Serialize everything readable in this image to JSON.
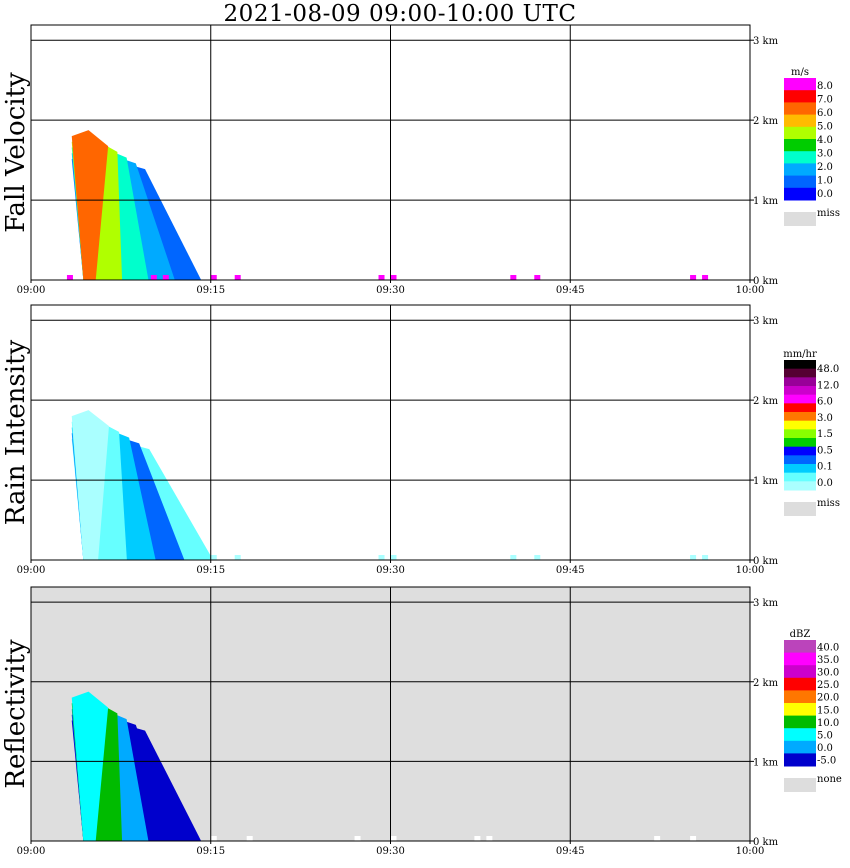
{
  "title": "2021-08-09   09:00-10:00 UTC",
  "colors": {
    "frame": "#000000",
    "missing": "#dddddd",
    "background": "#ffffff",
    "reflectivity_background": "#dedede"
  },
  "chart_data": [
    {
      "type": "heatmap",
      "name": "fall-velocity",
      "ylabel": "Fall Velocity",
      "x_ticks": [
        "09:00",
        "09:15",
        "09:30",
        "09:45",
        "10:00"
      ],
      "xlim": [
        "09:00",
        "10:00"
      ],
      "y_ticks": [
        "0 km",
        "1 km",
        "2 km",
        "3 km"
      ],
      "ylim": [
        0,
        3.0
      ],
      "grid": true,
      "background": "#ffffff",
      "legend": {
        "placement": "right",
        "unit": "m/s",
        "labels": [
          "8.0",
          "7.0",
          "6.0",
          "5.0",
          "4.0",
          "3.0",
          "2.0",
          "1.0",
          "0.0"
        ],
        "colors": [
          "#ff00ff",
          "#ff0000",
          "#ff6600",
          "#ffbb00",
          "#b0ff00",
          "#00cc00",
          "#00ffcc",
          "#00aaff",
          "#0066ff",
          "#0000ff"
        ],
        "missing_label": "miss"
      },
      "precipitation": {
        "start_time": "09:02",
        "end_time": "09:13",
        "max_height_km": 1.8,
        "surface_echo_times": [
          "09:03",
          "09:10",
          "09:11",
          "09:15",
          "09:17",
          "09:29",
          "09:30",
          "09:40",
          "09:42",
          "09:55",
          "09:56"
        ]
      }
    },
    {
      "type": "heatmap",
      "name": "rain-intensity",
      "ylabel": "Rain Intensity",
      "x_ticks": [
        "09:00",
        "09:15",
        "09:30",
        "09:45",
        "10:00"
      ],
      "xlim": [
        "09:00",
        "10:00"
      ],
      "y_ticks": [
        "0 km",
        "1 km",
        "2 km",
        "3 km"
      ],
      "ylim": [
        0,
        3.0
      ],
      "grid": true,
      "background": "#ffffff",
      "legend": {
        "placement": "right",
        "unit": "mm/hr",
        "labels": [
          "48.0",
          "12.0",
          "6.0",
          "3.0",
          "1.5",
          "0.5",
          "0.1",
          "0.0"
        ],
        "colors": [
          "#000000",
          "#550033",
          "#990099",
          "#cc00cc",
          "#ff00ff",
          "#ff0000",
          "#ff7700",
          "#ffff00",
          "#88ff00",
          "#00cc00",
          "#0000ff",
          "#0066ff",
          "#00ccff",
          "#66ffff",
          "#aaffff"
        ],
        "missing_label": "miss"
      },
      "precipitation": {
        "start_time": "09:02",
        "end_time": "09:14",
        "max_height_km": 1.8,
        "surface_echo_times": [
          "09:15",
          "09:17",
          "09:29",
          "09:30",
          "09:40",
          "09:42",
          "09:55",
          "09:56"
        ]
      }
    },
    {
      "type": "heatmap",
      "name": "reflectivity",
      "ylabel": "Reflectivity",
      "x_ticks": [
        "09:00",
        "09:15",
        "09:30",
        "09:45",
        "10:00"
      ],
      "xlim": [
        "09:00",
        "10:00"
      ],
      "y_ticks": [
        "0 km",
        "1 km",
        "2 km",
        "3 km"
      ],
      "ylim": [
        0,
        3.0
      ],
      "grid": true,
      "background": "#dedede",
      "legend": {
        "placement": "right",
        "unit": "dBZ",
        "labels": [
          "40.0",
          "35.0",
          "30.0",
          "25.0",
          "20.0",
          "15.0",
          "10.0",
          "5.0",
          "0.0",
          "-5.0"
        ],
        "colors": [
          "#bb44bb",
          "#ff00ff",
          "#cc00cc",
          "#ff0000",
          "#ff7700",
          "#ffff00",
          "#00bb00",
          "#00ffff",
          "#00aaff",
          "#0000cc"
        ],
        "missing_label": "none"
      },
      "precipitation": {
        "start_time": "09:02",
        "end_time": "09:13",
        "max_height_km": 1.8,
        "surface_echo_times": [
          "09:15",
          "09:18",
          "09:27",
          "09:30",
          "09:37",
          "09:38",
          "09:52",
          "09:55"
        ]
      }
    }
  ]
}
